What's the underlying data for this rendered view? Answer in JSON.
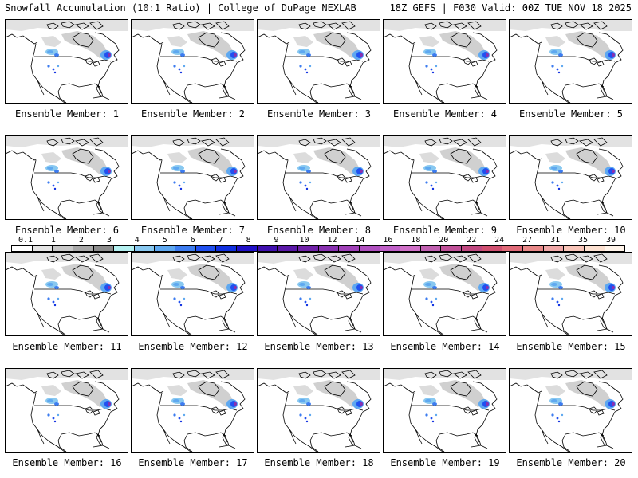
{
  "header": {
    "title": "Snowfall Accumulation (10:1 Ratio) | College of DuPage NEXLAB",
    "run_info": "18Z GEFS | F030 Valid: 00Z TUE NOV 18 2025"
  },
  "panels": [
    {
      "label": "Ensemble Member: 1"
    },
    {
      "label": "Ensemble Member: 2"
    },
    {
      "label": "Ensemble Member: 3"
    },
    {
      "label": "Ensemble Member: 4"
    },
    {
      "label": "Ensemble Member: 5"
    },
    {
      "label": "Ensemble Member: 6"
    },
    {
      "label": "Ensemble Member: 7"
    },
    {
      "label": "Ensemble Member: 8"
    },
    {
      "label": "Ensemble Member: 9"
    },
    {
      "label": "Ensemble Member: 10"
    },
    {
      "label": "Ensemble Member: 11"
    },
    {
      "label": "Ensemble Member: 12"
    },
    {
      "label": "Ensemble Member: 13"
    },
    {
      "label": "Ensemble Member: 14"
    },
    {
      "label": "Ensemble Member: 15"
    },
    {
      "label": "Ensemble Member: 16"
    },
    {
      "label": "Ensemble Member: 17"
    },
    {
      "label": "Ensemble Member: 18"
    },
    {
      "label": "Ensemble Member: 19"
    },
    {
      "label": "Ensemble Member: 20"
    }
  ],
  "color_scale": {
    "labels": [
      "0.1",
      "1",
      "2",
      "3",
      "4",
      "5",
      "6",
      "7",
      "8",
      "9",
      "10",
      "12",
      "14",
      "16",
      "18",
      "20",
      "22",
      "24",
      "27",
      "31",
      "35",
      "39"
    ],
    "colors": [
      "#ffffff",
      "#e4e4e4",
      "#c8c8c8",
      "#a8a8a8",
      "#8c8c8c",
      "#b4f0f0",
      "#88c8f0",
      "#5ea8f0",
      "#3c7cf0",
      "#2050f0",
      "#1030e0",
      "#2010c8",
      "#4010b0",
      "#5a18a8",
      "#7020a8",
      "#8830b0",
      "#a040b8",
      "#b050c0",
      "#c060c8",
      "#d070c8",
      "#c060b0",
      "#c05098",
      "#c04880",
      "#d05070",
      "#e06a78",
      "#e88888",
      "#f0a8a8",
      "#f8c4b8",
      "#fce0d0",
      "#fff4ea"
    ]
  }
}
